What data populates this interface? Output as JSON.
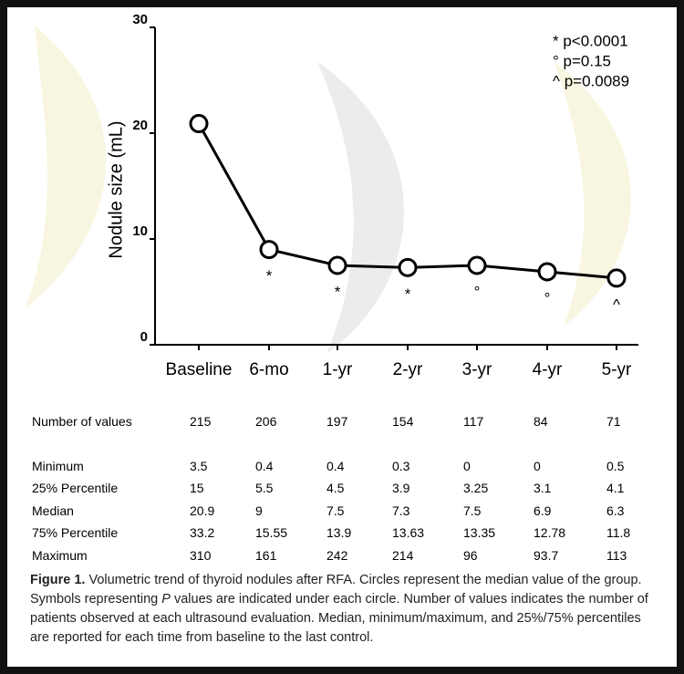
{
  "chart_data": {
    "type": "line",
    "y_label": "Nodule size (mL)",
    "categories": [
      "Baseline",
      "6-mo",
      "1-yr",
      "2-yr",
      "3-yr",
      "4-yr",
      "5-yr"
    ],
    "values": [
      20.9,
      9,
      7.5,
      7.3,
      7.5,
      6.9,
      6.3
    ],
    "point_symbols": [
      null,
      "*",
      "*",
      "*",
      "°",
      "°",
      "^"
    ],
    "legend": [
      "* p<0.0001",
      "° p=0.15",
      "^ p=0.0089"
    ],
    "color": "#000000",
    "ylim": [
      0,
      30
    ],
    "yticks": [
      0,
      10,
      20,
      30
    ]
  },
  "table": {
    "rows": [
      [
        "Number of values",
        215,
        206,
        197,
        154,
        117,
        84,
        71
      ],
      [
        "Minimum",
        3.5,
        0.4,
        0.4,
        0.3,
        0,
        0,
        0.5
      ],
      [
        "25% Percentile",
        15,
        5.5,
        4.5,
        3.9,
        3.25,
        3.1,
        4.1
      ],
      [
        "Median",
        20.9,
        9,
        7.5,
        7.3,
        7.5,
        6.9,
        6.3
      ],
      [
        "75% Percentile",
        33.2,
        15.55,
        13.9,
        13.63,
        13.35,
        12.78,
        11.8
      ],
      [
        "Maximum",
        310,
        161,
        242,
        214,
        96,
        93.7,
        113
      ]
    ]
  },
  "caption": {
    "label": "Figure 1.",
    "parts": [
      "Volumetric trend of thyroid nodules after RFA. Circles represent the median value of the group. Symbols representing ",
      "P",
      " values are indicated under each circle. Number of values indicates the number of patients observed at each ultrasound evaluation. Median, minimum/maximum, and 25%/75% percentiles are reported for each time from baseline to the last control."
    ]
  }
}
